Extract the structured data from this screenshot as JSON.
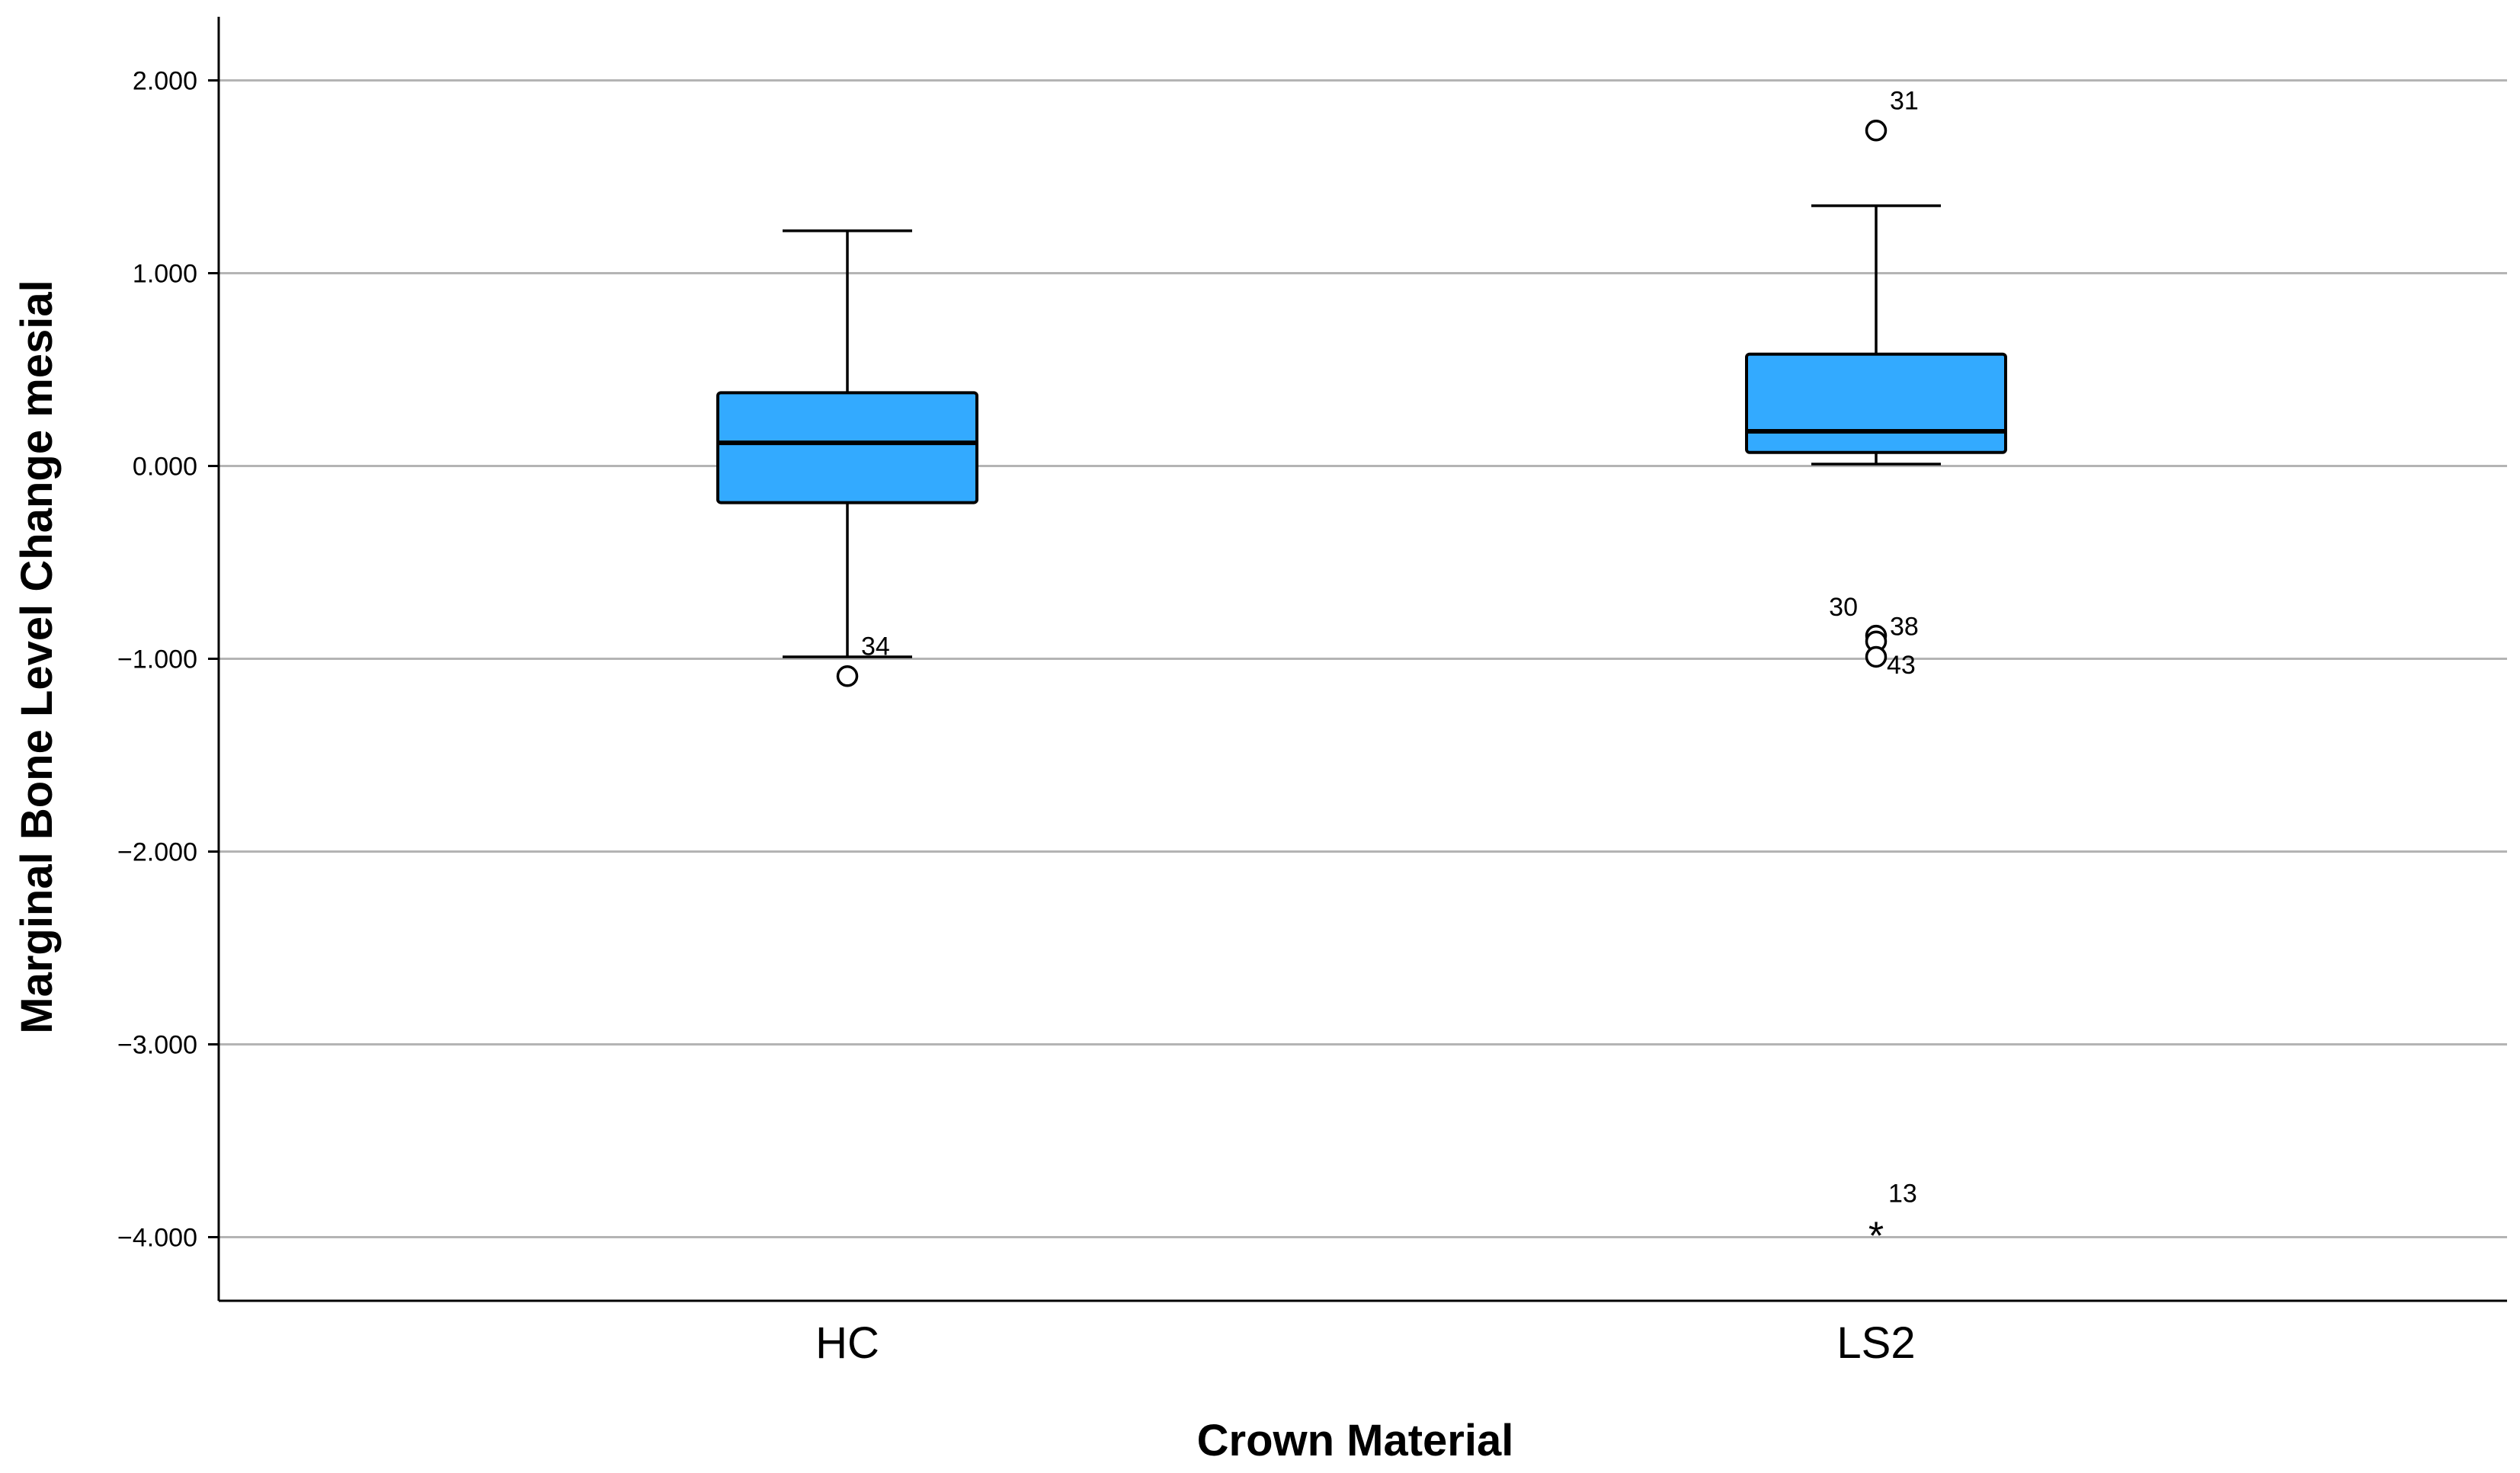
{
  "chart_data": {
    "type": "boxplot",
    "title": "",
    "xlabel": "Crown Material",
    "ylabel": "Marginal Bone Level Change mesial",
    "ylim": [
      -4.33,
      2.33
    ],
    "yticks": [
      2,
      1,
      0,
      -1,
      -2,
      -3,
      -4
    ],
    "ytick_labels": [
      "2.000",
      "1.000",
      "0.000",
      "−1.000",
      "−2.000",
      "−3.000",
      "−4.000"
    ],
    "grid": true,
    "box_color": "#33aaff",
    "categories": [
      "HC",
      "LS2"
    ],
    "boxes": [
      {
        "name": "HC",
        "whisker_low": -0.99,
        "q1": -0.19,
        "median": 0.12,
        "q3": 0.38,
        "whisker_high": 1.22,
        "outliers": [
          {
            "value": -1.09,
            "label": "34",
            "marker": "circle"
          }
        ]
      },
      {
        "name": "LS2",
        "whisker_low": 0.01,
        "q1": 0.07,
        "median": 0.18,
        "q3": 0.58,
        "whisker_high": 1.35,
        "outliers": [
          {
            "value": 1.74,
            "label": "31",
            "marker": "circle"
          },
          {
            "value": -0.88,
            "label": "30",
            "marker": "circle"
          },
          {
            "value": -0.91,
            "label": "38",
            "marker": "circle"
          },
          {
            "value": -0.99,
            "label": "43",
            "marker": "circle"
          },
          {
            "value": -3.96,
            "label": "13",
            "marker": "star"
          }
        ]
      }
    ]
  }
}
